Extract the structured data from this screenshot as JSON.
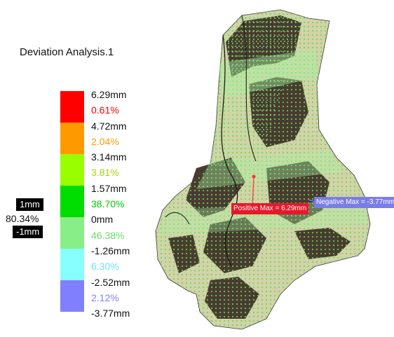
{
  "analysis": {
    "title": "Deviation Analysis.1"
  },
  "scale": {
    "colors": [
      "#ff0000",
      "#ff9900",
      "#99ff00",
      "#00dd00",
      "#88ee88",
      "#88ffff",
      "#8080ff"
    ],
    "labels": [
      {
        "text": "6.29mm",
        "color": "#111111"
      },
      {
        "text": "0.61%",
        "color": "#ff0000"
      },
      {
        "text": "4.72mm",
        "color": "#111111"
      },
      {
        "text": "2.04%",
        "color": "#ff9900"
      },
      {
        "text": "3.14mm",
        "color": "#111111"
      },
      {
        "text": "3.81%",
        "color": "#99dd00"
      },
      {
        "text": "1.57mm",
        "color": "#111111"
      },
      {
        "text": "38.70%",
        "color": "#00cc00"
      },
      {
        "text": "0mm",
        "color": "#111111"
      },
      {
        "text": "46.38%",
        "color": "#66dd66"
      },
      {
        "text": "-1.26mm",
        "color": "#111111"
      },
      {
        "text": "6.30%",
        "color": "#66e6ee"
      },
      {
        "text": "-2.52mm",
        "color": "#111111"
      },
      {
        "text": "2.12%",
        "color": "#8080ff"
      },
      {
        "text": "-3.77mm",
        "color": "#111111"
      }
    ]
  },
  "range": {
    "upper": "1mm",
    "percent": "80.34%",
    "lower": "-1mm"
  },
  "annotations": {
    "positive_max": "Positive Max = 6.29mm",
    "negative_max": "Negative Max = -3.77mm"
  }
}
